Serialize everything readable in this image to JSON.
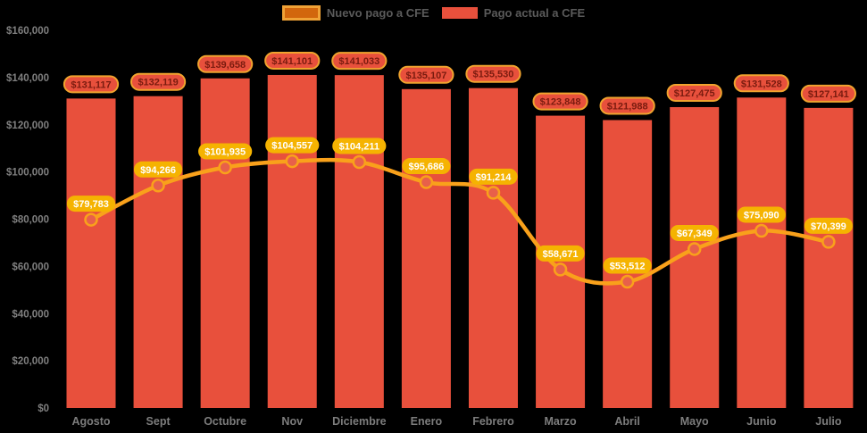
{
  "legend": {
    "items": [
      {
        "label": "Nuevo pago a CFE",
        "series": "line",
        "swatch_fill": "#d2660d",
        "swatch_border": "#f0a236"
      },
      {
        "label": "Pago actual a CFE",
        "series": "bar",
        "swatch_fill": "#e8503c"
      }
    ],
    "position": "top-center"
  },
  "chart_data": {
    "type": "bar",
    "subtype": "bar-with-line-overlay",
    "background": "#000000",
    "categories": [
      "Agosto",
      "Sept",
      "Octubre",
      "Nov",
      "Diciembre",
      "Enero",
      "Febrero",
      "Marzo",
      "Abril",
      "Mayo",
      "Junio",
      "Julio"
    ],
    "series": [
      {
        "name": "Pago actual a CFE",
        "type": "bar",
        "color": "#e8503c",
        "values": [
          131117,
          132119,
          139658,
          141101,
          141033,
          135107,
          135530,
          123848,
          121988,
          127475,
          131528,
          127141
        ],
        "labels": [
          "$131,117",
          "$132,119",
          "$139,658",
          "$141,101",
          "$141,033",
          "$135,107",
          "$135,530",
          "$123,848",
          "$121,988",
          "$127,475",
          "$131,528",
          "$127,141"
        ],
        "label_style": {
          "fill": "#e8503c",
          "border": "#f0a32e",
          "text_color": "#7a1b0f"
        }
      },
      {
        "name": "Nuevo pago a CFE",
        "type": "line",
        "color": "#f9a11b",
        "marker_fill": "#e8604a",
        "marker_stroke": "#f9a11b",
        "values": [
          79783,
          94266,
          101935,
          104557,
          104211,
          95686,
          91214,
          58671,
          53512,
          67349,
          75090,
          70399
        ],
        "labels": [
          "$79,783",
          "$94,266",
          "$101,935",
          "$104,557",
          "$104,211",
          "$95,686",
          "$91,214",
          "$58,671",
          "$53,512",
          "$67,349",
          "$75,090",
          "$70,399"
        ],
        "label_style": {
          "fill": "#f5b301",
          "text_color": "#ffffff"
        }
      }
    ],
    "y_axis": {
      "min": 0,
      "max": 160000,
      "step": 20000,
      "tick_labels": [
        "$0",
        "$20,000",
        "$40,000",
        "$60,000",
        "$80,000",
        "$100,000",
        "$120,000",
        "$140,000",
        "$160,000"
      ],
      "tick_color": "#7f7f7f"
    },
    "x_axis": {
      "label_color": "#7d7d7d"
    },
    "grid": false,
    "value_labels": "every bar and every line point carries a $ amount pill",
    "legend_position": "top-center"
  }
}
